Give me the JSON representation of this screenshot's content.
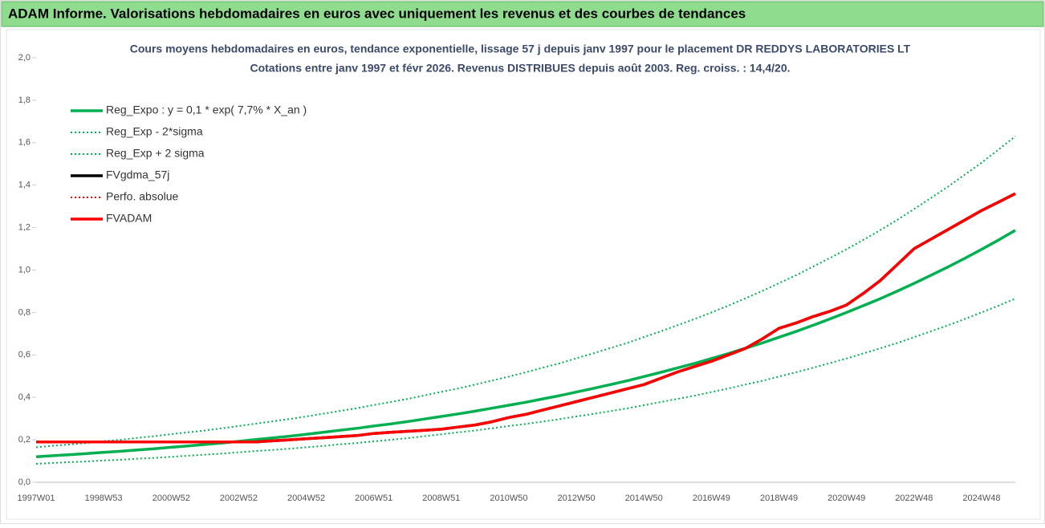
{
  "header": {
    "title": "ADAM Informe. Valorisations hebdomadaires en euros avec uniquement les revenus et des courbes de tendances"
  },
  "chart_data": {
    "type": "line",
    "title": "Cours moyens hebdomadaires en euros, tendance exponentielle, lissage 57 j depuis janv 1997 pour le placement DR REDDYS LABORATORIES LT",
    "subtitle": "Cotations entre janv 1997 et févr 2026. Revenus DISTRIBUES depuis août 2003. Reg. croiss. : 14,4/20.",
    "categories": [
      "1997W01",
      null,
      null,
      null,
      "1998W53",
      null,
      null,
      null,
      "2000W52",
      null,
      null,
      null,
      "2002W52",
      null,
      null,
      null,
      "2004W52",
      null,
      null,
      null,
      "2006W51",
      null,
      null,
      null,
      "2008W51",
      null,
      null,
      null,
      "2010W50",
      null,
      null,
      null,
      "2012W50",
      null,
      null,
      null,
      "2014W50",
      null,
      null,
      null,
      "2016W49",
      null,
      null,
      null,
      "2018W49",
      null,
      null,
      null,
      "2020W49",
      null,
      null,
      null,
      "2022W48",
      null,
      null,
      null,
      "2024W48",
      null,
      null
    ],
    "ylim": [
      0,
      2
    ],
    "yticks": [
      {
        "value": 0,
        "label": "0,0"
      },
      {
        "value": 0.2,
        "label": "0,2"
      },
      {
        "value": 0.4,
        "label": "0,4"
      },
      {
        "value": 0.6,
        "label": "0,6"
      },
      {
        "value": 0.8,
        "label": "0,8"
      },
      {
        "value": 1,
        "label": "1,0"
      },
      {
        "value": 1.2,
        "label": "1,2"
      },
      {
        "value": 1.4,
        "label": "1,4"
      },
      {
        "value": 1.6,
        "label": "1,6"
      },
      {
        "value": 1.8,
        "label": "1,8"
      },
      {
        "value": 2,
        "label": "2,0"
      }
    ],
    "grid": false,
    "legend": "top-left",
    "series": [
      {
        "name": "Reg_Expo : y = 0,1 * exp( 7,7% *  X_an )",
        "color": "#00b050",
        "dash": "solid",
        "values": [
          0.12,
          0.125,
          0.13,
          0.135,
          0.141,
          0.146,
          0.152,
          0.158,
          0.165,
          0.171,
          0.178,
          0.185,
          0.193,
          0.201,
          0.209,
          0.217,
          0.226,
          0.235,
          0.245,
          0.254,
          0.265,
          0.275,
          0.286,
          0.298,
          0.31,
          0.322,
          0.335,
          0.349,
          0.363,
          0.377,
          0.393,
          0.408,
          0.425,
          0.442,
          0.46,
          0.478,
          0.498,
          0.518,
          0.539,
          0.56,
          0.583,
          0.606,
          0.631,
          0.656,
          0.683,
          0.71,
          0.739,
          0.769,
          0.8,
          0.832,
          0.865,
          0.9,
          0.937,
          0.975,
          1.014,
          1.055,
          1.097,
          1.141,
          1.187
        ]
      },
      {
        "name": "Reg_Exp - 2*sigma",
        "color": "#00b050",
        "dash": "dotted",
        "values": [
          0.087,
          0.091,
          0.095,
          0.098,
          0.103,
          0.106,
          0.111,
          0.115,
          0.12,
          0.125,
          0.13,
          0.135,
          0.141,
          0.147,
          0.152,
          0.158,
          0.165,
          0.171,
          0.179,
          0.185,
          0.193,
          0.2,
          0.208,
          0.217,
          0.226,
          0.235,
          0.244,
          0.254,
          0.265,
          0.275,
          0.286,
          0.297,
          0.31,
          0.322,
          0.335,
          0.348,
          0.363,
          0.378,
          0.393,
          0.408,
          0.425,
          0.442,
          0.46,
          0.478,
          0.498,
          0.518,
          0.539,
          0.561,
          0.583,
          0.607,
          0.631,
          0.656,
          0.683,
          0.711,
          0.739,
          0.769,
          0.8,
          0.832,
          0.865
        ]
      },
      {
        "name": "Reg_Exp + 2 sigma",
        "color": "#00b050",
        "dash": "dotted",
        "values": [
          0.165,
          0.172,
          0.178,
          0.185,
          0.194,
          0.2,
          0.209,
          0.217,
          0.227,
          0.235,
          0.244,
          0.254,
          0.265,
          0.276,
          0.287,
          0.298,
          0.31,
          0.323,
          0.336,
          0.349,
          0.364,
          0.378,
          0.393,
          0.409,
          0.426,
          0.442,
          0.46,
          0.479,
          0.498,
          0.518,
          0.54,
          0.56,
          0.584,
          0.607,
          0.632,
          0.656,
          0.684,
          0.711,
          0.74,
          0.769,
          0.8,
          0.832,
          0.866,
          0.901,
          0.938,
          0.975,
          1.015,
          1.056,
          1.098,
          1.142,
          1.188,
          1.236,
          1.287,
          1.339,
          1.392,
          1.449,
          1.506,
          1.567,
          1.63
        ]
      },
      {
        "name": "FVgdma_57j",
        "color": "#000000",
        "dash": "solid",
        "values": [
          0.19,
          0.19,
          0.19,
          0.19,
          0.19,
          0.19,
          0.19,
          0.19,
          0.19,
          0.19,
          0.19,
          0.19,
          0.19,
          0.19,
          0.195,
          0.2,
          0.205,
          0.21,
          0.215,
          0.22,
          0.23,
          0.235,
          0.24,
          0.245,
          0.25,
          0.26,
          0.27,
          0.285,
          0.305,
          0.32,
          0.34,
          0.36,
          0.38,
          0.4,
          0.42,
          0.44,
          0.46,
          0.49,
          0.52,
          0.545,
          0.57,
          0.6,
          0.63,
          0.675,
          0.725,
          0.75,
          0.78,
          0.805,
          0.835,
          0.89,
          0.95,
          1.025,
          1.1,
          1.145,
          1.19,
          1.235,
          1.28,
          1.32,
          1.36
        ]
      },
      {
        "name": "Perfo. absolue",
        "color": "#ff0000",
        "dash": "dotted",
        "values": [
          0.19,
          0.19,
          0.19,
          0.19,
          0.19,
          0.19,
          0.19,
          0.19,
          0.19,
          0.19,
          0.19,
          0.19,
          0.19,
          0.19,
          0.195,
          0.2,
          0.205,
          0.21,
          0.215,
          0.22,
          0.23,
          0.235,
          0.24,
          0.245,
          0.25,
          0.26,
          0.27,
          0.285,
          0.305,
          0.32,
          0.34,
          0.36,
          0.38,
          0.4,
          0.42,
          0.44,
          0.46,
          0.49,
          0.52,
          0.545,
          0.57,
          0.6,
          0.63,
          0.675,
          0.725,
          0.75,
          0.78,
          0.805,
          0.835,
          0.89,
          0.95,
          1.025,
          1.1,
          1.145,
          1.19,
          1.235,
          1.28,
          1.32,
          1.36
        ]
      },
      {
        "name": "FVADAM",
        "color": "#ff0000",
        "dash": "solid",
        "values": [
          0.19,
          0.19,
          0.19,
          0.19,
          0.19,
          0.19,
          0.19,
          0.19,
          0.19,
          0.19,
          0.19,
          0.19,
          0.19,
          0.19,
          0.195,
          0.2,
          0.205,
          0.21,
          0.215,
          0.22,
          0.23,
          0.235,
          0.24,
          0.245,
          0.25,
          0.26,
          0.27,
          0.285,
          0.305,
          0.32,
          0.34,
          0.36,
          0.38,
          0.4,
          0.42,
          0.44,
          0.46,
          0.49,
          0.52,
          0.545,
          0.57,
          0.6,
          0.63,
          0.675,
          0.725,
          0.75,
          0.78,
          0.805,
          0.835,
          0.89,
          0.95,
          1.025,
          1.1,
          1.145,
          1.19,
          1.235,
          1.28,
          1.32,
          1.36
        ]
      }
    ]
  }
}
